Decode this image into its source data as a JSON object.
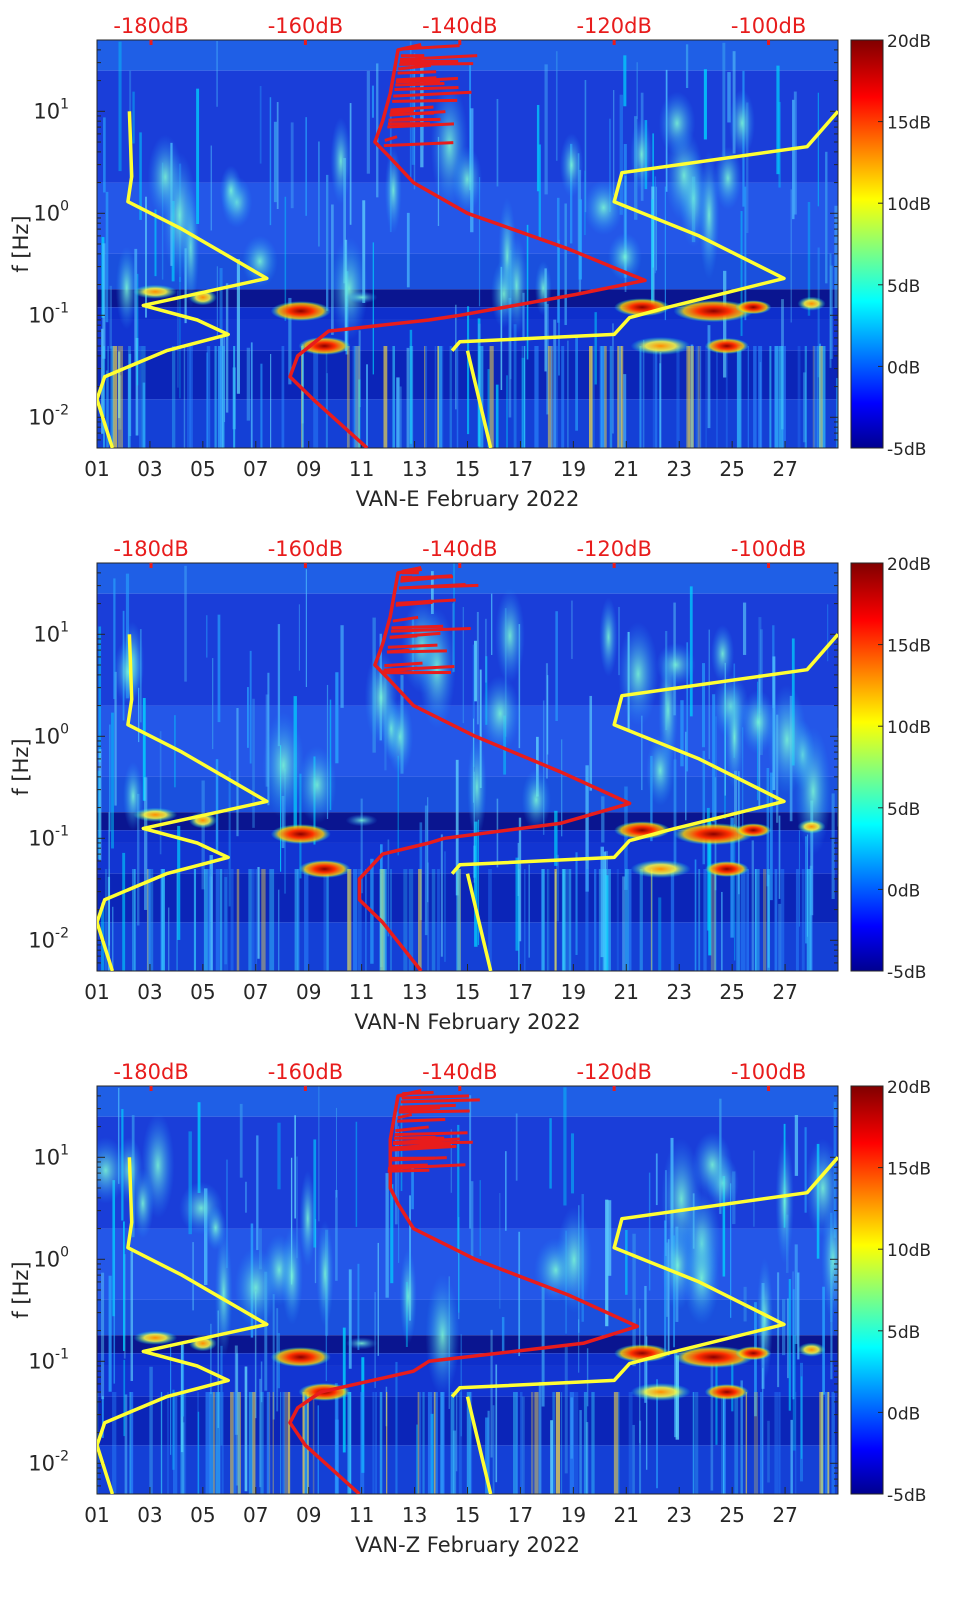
{
  "chart_data": [
    {
      "type": "heatmap",
      "xlabel": "VAN-E February 2022",
      "ylabel": "f [Hz]",
      "x_range_days": [
        1,
        29
      ],
      "x_ticks": [
        "01",
        "03",
        "05",
        "07",
        "09",
        "11",
        "13",
        "15",
        "17",
        "19",
        "21",
        "23",
        "25",
        "27"
      ],
      "y_scale": "log",
      "y_range_hz": [
        0.005,
        50
      ],
      "y_ticks": [
        "10^-2",
        "10^-1",
        "10^0",
        "10^1"
      ],
      "top_axis_ticks": [
        "-180dB",
        "-160dB",
        "-140dB",
        "-120dB",
        "-100dB"
      ],
      "top_axis_db_range": [
        -187,
        -91
      ],
      "colorbar": {
        "ticks": [
          "20dB",
          "15dB",
          "10dB",
          "5dB",
          "0dB",
          "-5dB"
        ],
        "range_db": [
          -5,
          20
        ]
      },
      "series": [
        {
          "color": "#ffff33",
          "axis": "top_db",
          "points": [
            [
              -182.8,
              10
            ],
            [
              -182.5,
              2.3
            ],
            [
              -183,
              1.3
            ],
            [
              -176,
              0.7
            ],
            [
              -165,
              0.23
            ],
            [
              -181,
              0.125
            ],
            [
              -174,
              0.09
            ],
            [
              -170,
              0.065
            ],
            [
              -178,
              0.045
            ],
            [
              -186,
              0.025
            ],
            [
              -187,
              0.015
            ],
            [
              -185,
              0.005
            ]
          ]
        },
        {
          "color": "#ffff33",
          "axis": "top_db",
          "points": [
            [
              -139,
              0.045
            ],
            [
              -136,
              0.005
            ]
          ]
        },
        {
          "color": "#ffff33",
          "axis": "top_db",
          "points": [
            [
              -91,
              10
            ],
            [
              -95,
              4.5
            ],
            [
              -119,
              2.5
            ],
            [
              -120,
              1.3
            ],
            [
              -109,
              0.6
            ],
            [
              -98,
              0.23
            ],
            [
              -113,
              0.12
            ],
            [
              -118,
              0.095
            ],
            [
              -120,
              0.065
            ],
            [
              -140,
              0.055
            ],
            [
              -141,
              0.045
            ]
          ]
        },
        {
          "color": "#e81c1c",
          "axis": "top_db",
          "points": [
            [
              -145,
              45
            ],
            [
              -148,
              40
            ],
            [
              -149,
              15
            ],
            [
              -150,
              8
            ],
            [
              -151,
              5
            ],
            [
              -149,
              3.5
            ],
            [
              -146,
              2
            ],
            [
              -139,
              1
            ],
            [
              -126,
              0.45
            ],
            [
              -116,
              0.22
            ],
            [
              -125,
              0.16
            ],
            [
              -140,
              0.1
            ],
            [
              -144,
              0.09
            ],
            [
              -157,
              0.07
            ],
            [
              -161,
              0.04
            ],
            [
              -162,
              0.025
            ],
            [
              -159,
              0.015
            ],
            [
              -152,
              0.005
            ]
          ]
        }
      ]
    },
    {
      "type": "heatmap",
      "xlabel": "VAN-N February 2022",
      "ylabel": "f [Hz]",
      "x_range_days": [
        1,
        29
      ],
      "x_ticks": [
        "01",
        "03",
        "05",
        "07",
        "09",
        "11",
        "13",
        "15",
        "17",
        "19",
        "21",
        "23",
        "25",
        "27"
      ],
      "y_scale": "log",
      "y_range_hz": [
        0.005,
        50
      ],
      "y_ticks": [
        "10^-2",
        "10^-1",
        "10^0",
        "10^1"
      ],
      "top_axis_ticks": [
        "-180dB",
        "-160dB",
        "-140dB",
        "-120dB",
        "-100dB"
      ],
      "top_axis_db_range": [
        -187,
        -91
      ],
      "colorbar": {
        "ticks": [
          "20dB",
          "15dB",
          "10dB",
          "5dB",
          "0dB",
          "-5dB"
        ],
        "range_db": [
          -5,
          20
        ]
      },
      "series": [
        {
          "color": "#ffff33",
          "axis": "top_db",
          "points": [
            [
              -182.8,
              10
            ],
            [
              -182.5,
              2.3
            ],
            [
              -183,
              1.3
            ],
            [
              -176,
              0.7
            ],
            [
              -165,
              0.23
            ],
            [
              -181,
              0.125
            ],
            [
              -174,
              0.09
            ],
            [
              -170,
              0.065
            ],
            [
              -178,
              0.045
            ],
            [
              -186,
              0.025
            ],
            [
              -187,
              0.015
            ],
            [
              -185,
              0.005
            ]
          ]
        },
        {
          "color": "#ffff33",
          "axis": "top_db",
          "points": [
            [
              -139,
              0.045
            ],
            [
              -136,
              0.005
            ]
          ]
        },
        {
          "color": "#ffff33",
          "axis": "top_db",
          "points": [
            [
              -91,
              10
            ],
            [
              -95,
              4.5
            ],
            [
              -119,
              2.5
            ],
            [
              -120,
              1.3
            ],
            [
              -109,
              0.6
            ],
            [
              -98,
              0.23
            ],
            [
              -113,
              0.12
            ],
            [
              -118,
              0.095
            ],
            [
              -120,
              0.065
            ],
            [
              -140,
              0.055
            ],
            [
              -141,
              0.045
            ]
          ]
        },
        {
          "color": "#e81c1c",
          "axis": "top_db",
          "points": [
            [
              -145,
              45
            ],
            [
              -148,
              40
            ],
            [
              -149,
              15
            ],
            [
              -150,
              8
            ],
            [
              -151,
              5
            ],
            [
              -149,
              3.5
            ],
            [
              -146,
              2
            ],
            [
              -138,
              1
            ],
            [
              -127,
              0.45
            ],
            [
              -118,
              0.22
            ],
            [
              -127,
              0.14
            ],
            [
              -142,
              0.1
            ],
            [
              -144,
              0.09
            ],
            [
              -150,
              0.07
            ],
            [
              -153,
              0.04
            ],
            [
              -153,
              0.025
            ],
            [
              -150,
              0.015
            ],
            [
              -145,
              0.005
            ]
          ]
        }
      ]
    },
    {
      "type": "heatmap",
      "xlabel": "VAN-Z February 2022",
      "ylabel": "f [Hz]",
      "x_range_days": [
        1,
        29
      ],
      "x_ticks": [
        "01",
        "03",
        "05",
        "07",
        "09",
        "11",
        "13",
        "15",
        "17",
        "19",
        "21",
        "23",
        "25",
        "27"
      ],
      "y_scale": "log",
      "y_range_hz": [
        0.005,
        50
      ],
      "y_ticks": [
        "10^-2",
        "10^-1",
        "10^0",
        "10^1"
      ],
      "top_axis_ticks": [
        "-180dB",
        "-160dB",
        "-140dB",
        "-120dB",
        "-100dB"
      ],
      "top_axis_db_range": [
        -187,
        -91
      ],
      "colorbar": {
        "ticks": [
          "20dB",
          "15dB",
          "10dB",
          "5dB",
          "0dB",
          "-5dB"
        ],
        "range_db": [
          -5,
          20
        ]
      },
      "series": [
        {
          "color": "#ffff33",
          "axis": "top_db",
          "points": [
            [
              -182.8,
              10
            ],
            [
              -182.5,
              2.3
            ],
            [
              -183,
              1.3
            ],
            [
              -176,
              0.7
            ],
            [
              -165,
              0.23
            ],
            [
              -181,
              0.125
            ],
            [
              -174,
              0.09
            ],
            [
              -170,
              0.065
            ],
            [
              -178,
              0.045
            ],
            [
              -186,
              0.025
            ],
            [
              -187,
              0.015
            ],
            [
              -185,
              0.005
            ]
          ]
        },
        {
          "color": "#ffff33",
          "axis": "top_db",
          "points": [
            [
              -139,
              0.045
            ],
            [
              -136,
              0.005
            ]
          ]
        },
        {
          "color": "#ffff33",
          "axis": "top_db",
          "points": [
            [
              -91,
              10
            ],
            [
              -95,
              4.5
            ],
            [
              -119,
              2.5
            ],
            [
              -120,
              1.3
            ],
            [
              -109,
              0.6
            ],
            [
              -98,
              0.23
            ],
            [
              -113,
              0.12
            ],
            [
              -118,
              0.095
            ],
            [
              -120,
              0.065
            ],
            [
              -140,
              0.055
            ],
            [
              -141,
              0.045
            ]
          ]
        },
        {
          "color": "#e81c1c",
          "axis": "top_db",
          "points": [
            [
              -145,
              45
            ],
            [
              -148,
              40
            ],
            [
              -149,
              15
            ],
            [
              -149,
              8
            ],
            [
              -149,
              5
            ],
            [
              -148,
              3.5
            ],
            [
              -146,
              2
            ],
            [
              -138,
              1
            ],
            [
              -126,
              0.45
            ],
            [
              -117,
              0.22
            ],
            [
              -124,
              0.15
            ],
            [
              -144,
              0.1
            ],
            [
              -146,
              0.08
            ],
            [
              -158,
              0.05
            ],
            [
              -161,
              0.035
            ],
            [
              -162,
              0.025
            ],
            [
              -160,
              0.015
            ],
            [
              -153,
              0.005
            ]
          ]
        }
      ]
    }
  ]
}
